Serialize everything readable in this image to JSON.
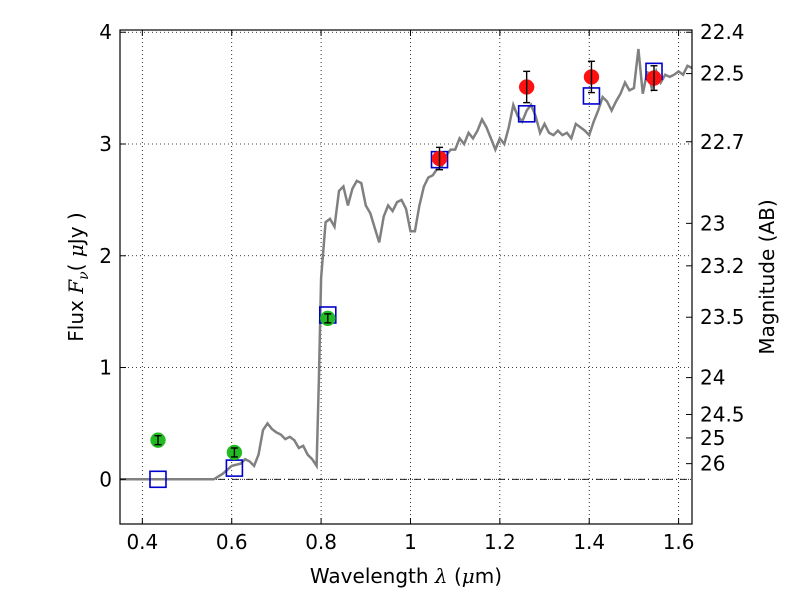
{
  "chart_data": {
    "type": "scatter",
    "xlabel": "Wavelength  λ (μm)",
    "ylabel": "Flux  F_ν  ( μJy )",
    "ylabel_parts": {
      "prefix": "Flux ",
      "symbol": "F",
      "subscript": "ν",
      "paren_open": "( ",
      "unit_greek": "μ",
      "unit": "Jy",
      "paren_close": " )"
    },
    "xlabel_parts": {
      "prefix": "Wavelength ",
      "symbol": "λ",
      "unit_open": " (",
      "unit_greek": "μ",
      "unit": "m)"
    },
    "y2label": "Magnitude (AB)",
    "xlim": [
      0.35,
      1.63
    ],
    "ylim": [
      -0.4,
      4.02
    ],
    "x_ticks": [
      0.4,
      0.6,
      0.8,
      1.0,
      1.2,
      1.4,
      1.6
    ],
    "x_tick_labels": [
      "0.4",
      "0.6",
      "0.8",
      "1",
      "1.2",
      "1.4",
      "1.6"
    ],
    "y_ticks": [
      0,
      1,
      2,
      3,
      4
    ],
    "y_tick_labels": [
      "0",
      "1",
      "2",
      "3",
      "4"
    ],
    "y2_ticks": [
      {
        "label": "22.4",
        "flux": 4.0
      },
      {
        "label": "22.5",
        "flux": 3.63
      },
      {
        "label": "22.7",
        "flux": 3.02
      },
      {
        "label": "23",
        "flux": 2.29
      },
      {
        "label": "23.2",
        "flux": 1.91
      },
      {
        "label": "23.5",
        "flux": 1.45
      },
      {
        "label": "24",
        "flux": 0.91
      },
      {
        "label": "24.5",
        "flux": 0.58
      },
      {
        "label": "25",
        "flux": 0.37
      },
      {
        "label": "26",
        "flux": 0.14
      }
    ],
    "grid": true,
    "zero_line": true,
    "series": [
      {
        "marker": "line",
        "color": "#808080",
        "points": [
          [
            0.35,
            0.0
          ],
          [
            0.56,
            0.0
          ],
          [
            0.58,
            0.05
          ],
          [
            0.6,
            0.12
          ],
          [
            0.62,
            0.14
          ],
          [
            0.63,
            0.18
          ],
          [
            0.64,
            0.16
          ],
          [
            0.65,
            0.12
          ],
          [
            0.66,
            0.22
          ],
          [
            0.67,
            0.44
          ],
          [
            0.68,
            0.5
          ],
          [
            0.69,
            0.45
          ],
          [
            0.7,
            0.42
          ],
          [
            0.71,
            0.4
          ],
          [
            0.72,
            0.36
          ],
          [
            0.73,
            0.38
          ],
          [
            0.74,
            0.35
          ],
          [
            0.75,
            0.28
          ],
          [
            0.76,
            0.3
          ],
          [
            0.77,
            0.22
          ],
          [
            0.78,
            0.18
          ],
          [
            0.79,
            0.12
          ],
          [
            0.795,
            0.9
          ],
          [
            0.8,
            1.8
          ],
          [
            0.81,
            2.3
          ],
          [
            0.82,
            2.33
          ],
          [
            0.83,
            2.26
          ],
          [
            0.84,
            2.58
          ],
          [
            0.85,
            2.62
          ],
          [
            0.86,
            2.45
          ],
          [
            0.87,
            2.6
          ],
          [
            0.88,
            2.67
          ],
          [
            0.89,
            2.65
          ],
          [
            0.9,
            2.45
          ],
          [
            0.91,
            2.38
          ],
          [
            0.92,
            2.25
          ],
          [
            0.93,
            2.12
          ],
          [
            0.94,
            2.35
          ],
          [
            0.95,
            2.45
          ],
          [
            0.96,
            2.4
          ],
          [
            0.97,
            2.48
          ],
          [
            0.98,
            2.5
          ],
          [
            0.99,
            2.42
          ],
          [
            1.0,
            2.22
          ],
          [
            1.01,
            2.22
          ],
          [
            1.02,
            2.45
          ],
          [
            1.03,
            2.62
          ],
          [
            1.04,
            2.7
          ],
          [
            1.05,
            2.72
          ],
          [
            1.06,
            2.78
          ],
          [
            1.07,
            2.8
          ],
          [
            1.08,
            2.9
          ],
          [
            1.09,
            2.95
          ],
          [
            1.1,
            2.95
          ],
          [
            1.11,
            3.05
          ],
          [
            1.12,
            3.0
          ],
          [
            1.13,
            3.1
          ],
          [
            1.14,
            3.05
          ],
          [
            1.15,
            3.12
          ],
          [
            1.16,
            3.22
          ],
          [
            1.17,
            3.15
          ],
          [
            1.18,
            3.05
          ],
          [
            1.19,
            2.95
          ],
          [
            1.2,
            3.05
          ],
          [
            1.21,
            3.0
          ],
          [
            1.22,
            3.15
          ],
          [
            1.23,
            3.35
          ],
          [
            1.24,
            3.25
          ],
          [
            1.25,
            3.2
          ],
          [
            1.26,
            3.3
          ],
          [
            1.27,
            3.35
          ],
          [
            1.28,
            3.25
          ],
          [
            1.29,
            3.1
          ],
          [
            1.3,
            3.18
          ],
          [
            1.31,
            3.1
          ],
          [
            1.32,
            3.08
          ],
          [
            1.33,
            3.12
          ],
          [
            1.34,
            3.08
          ],
          [
            1.35,
            3.1
          ],
          [
            1.36,
            3.05
          ],
          [
            1.37,
            3.18
          ],
          [
            1.38,
            3.15
          ],
          [
            1.39,
            3.12
          ],
          [
            1.4,
            3.08
          ],
          [
            1.41,
            3.2
          ],
          [
            1.42,
            3.3
          ],
          [
            1.43,
            3.42
          ],
          [
            1.44,
            3.38
          ],
          [
            1.45,
            3.3
          ],
          [
            1.46,
            3.38
          ],
          [
            1.47,
            3.45
          ],
          [
            1.48,
            3.55
          ],
          [
            1.49,
            3.48
          ],
          [
            1.5,
            3.5
          ],
          [
            1.51,
            3.85
          ],
          [
            1.52,
            3.45
          ],
          [
            1.53,
            3.65
          ],
          [
            1.54,
            3.5
          ],
          [
            1.55,
            3.65
          ],
          [
            1.56,
            3.55
          ],
          [
            1.57,
            3.62
          ],
          [
            1.58,
            3.6
          ],
          [
            1.59,
            3.62
          ],
          [
            1.6,
            3.65
          ],
          [
            1.61,
            3.62
          ],
          [
            1.62,
            3.7
          ],
          [
            1.63,
            3.68
          ]
        ]
      },
      {
        "marker": "open-square",
        "color": "#0000cc",
        "points": [
          [
            0.435,
            0.0
          ],
          [
            0.606,
            0.1
          ],
          [
            0.815,
            1.47
          ],
          [
            1.065,
            2.86
          ],
          [
            1.26,
            3.27
          ],
          [
            1.405,
            3.43
          ],
          [
            1.545,
            3.65
          ]
        ]
      },
      {
        "marker": "filled-circle",
        "color": "#22bb22",
        "points": [
          {
            "x": 0.435,
            "y": 0.35,
            "err": 0.04
          },
          {
            "x": 0.606,
            "y": 0.24,
            "err": 0.04
          },
          {
            "x": 0.815,
            "y": 1.44,
            "err": 0.04
          }
        ]
      },
      {
        "marker": "filled-circle",
        "color": "#ff1111",
        "points": [
          {
            "x": 1.065,
            "y": 2.87,
            "err": 0.1
          },
          {
            "x": 1.26,
            "y": 3.51,
            "err": 0.14
          },
          {
            "x": 1.405,
            "y": 3.6,
            "err": 0.14
          },
          {
            "x": 1.545,
            "y": 3.59,
            "err": 0.11
          }
        ]
      }
    ]
  }
}
